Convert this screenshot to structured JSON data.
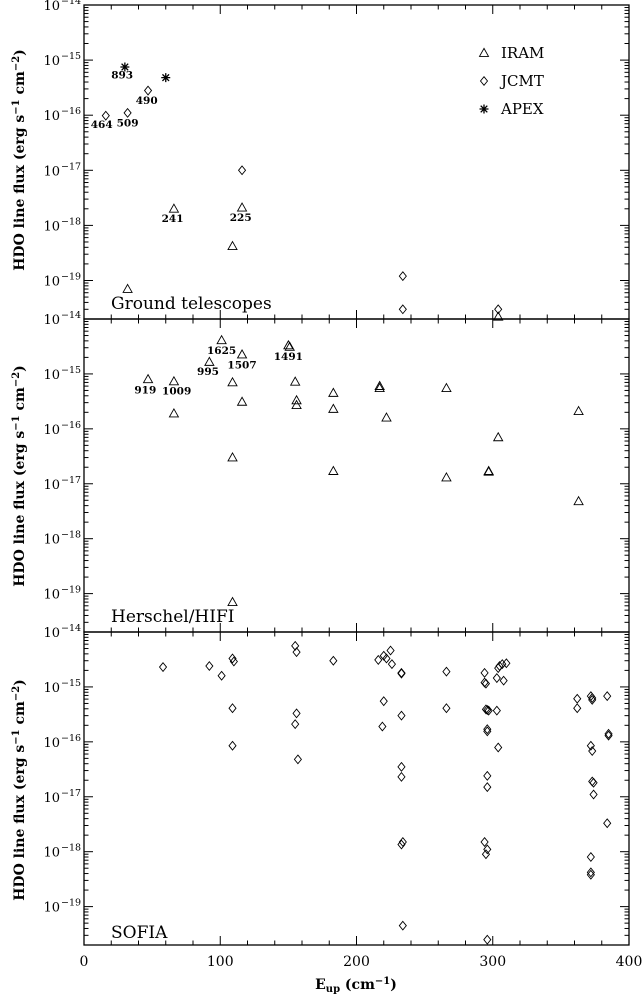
{
  "chart_data": [
    {
      "type": "scatter",
      "title": "Ground telescopes",
      "ylabel": "HDO line flux (erg s-1 cm-2)",
      "yscale": "log",
      "ylim": [
        2e-20,
        1e-14
      ],
      "xlim": [
        0,
        400
      ],
      "legend": {
        "placement": "top-right",
        "entries": [
          "IRAM",
          "JCMT",
          "APEX"
        ]
      },
      "yticks": [
        {
          "v": 1e-14,
          "label": "10",
          "exp": "−14"
        },
        {
          "v": 1e-15,
          "label": "10",
          "exp": "−15"
        },
        {
          "v": 1e-16,
          "label": "10",
          "exp": "−16"
        },
        {
          "v": 1e-17,
          "label": "10",
          "exp": "−17"
        },
        {
          "v": 1e-18,
          "label": "10",
          "exp": "−18"
        },
        {
          "v": 1e-19,
          "label": "10",
          "exp": "−19"
        }
      ],
      "series": [
        {
          "name": "IRAM",
          "marker": "triangle",
          "x": [
            32,
            66,
            109,
            116,
            304
          ],
          "y": [
            7e-20,
            2e-18,
            4.2e-19,
            2.1e-18,
            2.2e-20
          ]
        },
        {
          "name": "JCMT",
          "marker": "diamond",
          "x": [
            16,
            32,
            47,
            116,
            234,
            234,
            304
          ],
          "y": [
            9.8e-17,
            1.1e-16,
            2.8e-16,
            1e-17,
            1.2e-19,
            3e-20,
            3e-20
          ]
        },
        {
          "name": "APEX",
          "marker": "star",
          "x": [
            30,
            60
          ],
          "y": [
            7.5e-16,
            4.8e-16
          ]
        }
      ],
      "annotations": [
        {
          "text": "893",
          "x": 28,
          "y": 4.6e-16
        },
        {
          "text": "490",
          "x": 46,
          "y": 1.6e-16
        },
        {
          "text": "464",
          "x": 13,
          "y": 5.9e-17
        },
        {
          "text": "509",
          "x": 32,
          "y": 6.3e-17
        },
        {
          "text": "241",
          "x": 65,
          "y": 1.15e-18
        },
        {
          "text": "225",
          "x": 115,
          "y": 1.2e-18
        }
      ]
    },
    {
      "type": "scatter",
      "title": "Herschel/HIFI",
      "ylabel": "HDO line flux (erg s-1 cm-2)",
      "yscale": "log",
      "ylim": [
        2e-20,
        1e-14
      ],
      "xlim": [
        0,
        400
      ],
      "yticks": [
        {
          "v": 1e-14,
          "label": "10",
          "exp": "−14"
        },
        {
          "v": 1e-15,
          "label": "10",
          "exp": "−15"
        },
        {
          "v": 1e-16,
          "label": "10",
          "exp": "−16"
        },
        {
          "v": 1e-17,
          "label": "10",
          "exp": "−17"
        },
        {
          "v": 1e-18,
          "label": "10",
          "exp": "−18"
        },
        {
          "v": 1e-19,
          "label": "10",
          "exp": "−19"
        }
      ],
      "series": [
        {
          "name": "IRAM",
          "marker": "triangle",
          "x": [
            47,
            66,
            66,
            92,
            101,
            109,
            109,
            109,
            116,
            116,
            150,
            151,
            155,
            156,
            156,
            183,
            183,
            183,
            217,
            217,
            222,
            266,
            266,
            297,
            297,
            304,
            363,
            363
          ],
          "y": [
            8e-16,
            7.3e-16,
            1.9e-16,
            1.65e-15,
            4.1e-15,
            7e-16,
            3e-17,
            7e-20,
            2.25e-15,
            3.1e-16,
            3.3e-15,
            3.1e-15,
            7.2e-16,
            3.3e-16,
            2.7e-16,
            4.5e-16,
            2.3e-16,
            1.7e-17,
            6e-16,
            5.5e-16,
            1.6e-16,
            5.5e-16,
            1.3e-17,
            1.7e-17,
            1.65e-17,
            7e-17,
            2.1e-16,
            4.8e-18
          ]
        }
      ],
      "annotations": [
        {
          "text": "1625",
          "x": 101,
          "y": 2.3e-15
        },
        {
          "text": "1491",
          "x": 150,
          "y": 1.8e-15
        },
        {
          "text": "995",
          "x": 91,
          "y": 9.5e-16
        },
        {
          "text": "1507",
          "x": 116,
          "y": 1.25e-15
        },
        {
          "text": "919",
          "x": 45,
          "y": 4.4e-16
        },
        {
          "text": "1009",
          "x": 68,
          "y": 4.2e-16
        }
      ]
    },
    {
      "type": "scatter",
      "title": "SOFIA",
      "ylabel": "HDO line flux (erg s-1 cm-2)",
      "xlabel": "Eup (cm-1)",
      "yscale": "log",
      "ylim": [
        2e-20,
        1e-14
      ],
      "xlim": [
        0,
        400
      ],
      "xticks": [
        0,
        100,
        200,
        300,
        400
      ],
      "yticks": [
        {
          "v": 1e-14,
          "label": "10",
          "exp": "−14"
        },
        {
          "v": 1e-15,
          "label": "10",
          "exp": "−15"
        },
        {
          "v": 1e-16,
          "label": "10",
          "exp": "−16"
        },
        {
          "v": 1e-17,
          "label": "10",
          "exp": "−17"
        },
        {
          "v": 1e-18,
          "label": "10",
          "exp": "−18"
        },
        {
          "v": 1e-19,
          "label": "10",
          "exp": "−19"
        }
      ],
      "series": [
        {
          "name": "JCMT",
          "marker": "diamond",
          "x": [
            58,
            92,
            101,
            109,
            110,
            109,
            109,
            155,
            156,
            156,
            155,
            157,
            183,
            216,
            220,
            222,
            225,
            226,
            220,
            219,
            233,
            233,
            233,
            233,
            233,
            234,
            233,
            234,
            266,
            266,
            294,
            294,
            295,
            295,
            296,
            296,
            296,
            296,
            296,
            294,
            296,
            295,
            296,
            297,
            304,
            303,
            305,
            307,
            308,
            310,
            303,
            304,
            362,
            362,
            372,
            373,
            373,
            372,
            373,
            374,
            374,
            372,
            372,
            372,
            373,
            384,
            385,
            385,
            384
          ],
          "y": [
            2.3e-15,
            2.4e-15,
            1.6e-15,
            3.3e-15,
            2.9e-15,
            4.1e-16,
            8.5e-17,
            5.6e-15,
            4.3e-15,
            3.3e-16,
            2.1e-16,
            4.8e-17,
            3e-15,
            3.1e-15,
            3.7e-15,
            3.3e-15,
            4.6e-15,
            2.6e-15,
            5.5e-16,
            1.9e-16,
            3.5e-17,
            1.8e-15,
            1.75e-15,
            3e-16,
            2.3e-17,
            1.5e-18,
            1.35e-18,
            4.5e-20,
            1.9e-15,
            4.1e-16,
            1.8e-15,
            1.2e-15,
            1.15e-15,
            3.9e-16,
            3.8e-16,
            1.7e-16,
            1.55e-16,
            2.4e-17,
            1.5e-17,
            1.5e-18,
            1.1e-18,
            9e-19,
            2.5e-20,
            3.7e-16,
            2.2e-15,
            1.45e-15,
            2.4e-15,
            2.6e-15,
            1.3e-15,
            2.7e-15,
            3.7e-16,
            7.9e-17,
            6.1e-16,
            4.1e-16,
            6.8e-16,
            6.3e-16,
            5.8e-16,
            8.5e-17,
            1.9e-17,
            1.8e-17,
            1.1e-17,
            8e-19,
            4.2e-19,
            3.8e-19,
            6.8e-17,
            6.8e-16,
            1.4e-16,
            1.3e-16,
            3.3e-18
          ]
        }
      ]
    }
  ]
}
